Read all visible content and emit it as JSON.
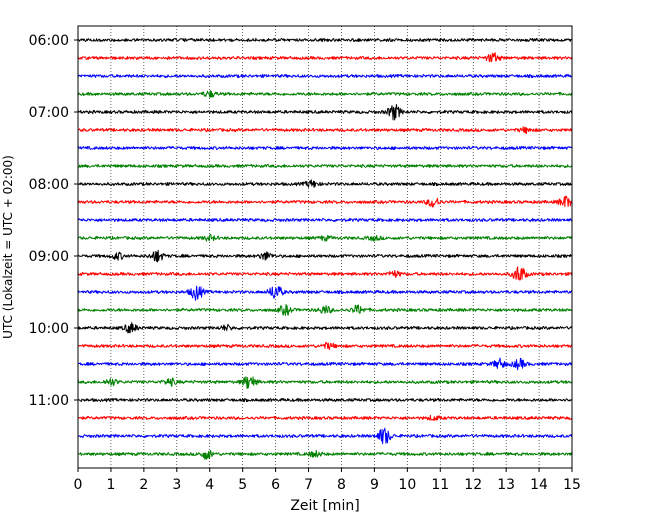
{
  "chart_data": {
    "type": "line",
    "title": "",
    "xlabel": "Zeit  [min]",
    "ylabel": "UTC (Lokalzeit = UTC + 02:00)",
    "xlim": [
      0,
      15
    ],
    "x_ticks": [
      "0",
      "1",
      "2",
      "3",
      "4",
      "5",
      "6",
      "7",
      "8",
      "9",
      "10",
      "11",
      "12",
      "13",
      "14",
      "15"
    ],
    "y_ticks": [
      "06:00",
      "07:00",
      "08:00",
      "09:00",
      "10:00",
      "11:00"
    ],
    "grid_x": true,
    "grid_style": "dotted",
    "color_cycle": [
      "#000000",
      "#ff0000",
      "#0000ff",
      "#008000"
    ],
    "series": [
      {
        "start": "06:00",
        "color": "#000000",
        "bursts": []
      },
      {
        "start": "06:15",
        "color": "#ff0000",
        "bursts": [
          {
            "t": 12.6,
            "a": 0.5
          }
        ]
      },
      {
        "start": "06:30",
        "color": "#0000ff",
        "bursts": []
      },
      {
        "start": "06:45",
        "color": "#008000",
        "bursts": [
          {
            "t": 4.0,
            "a": 0.3
          }
        ]
      },
      {
        "start": "07:00",
        "color": "#000000",
        "bursts": [
          {
            "t": 9.6,
            "a": 0.8
          }
        ]
      },
      {
        "start": "07:15",
        "color": "#ff0000",
        "bursts": [
          {
            "t": 13.6,
            "a": 0.25
          }
        ]
      },
      {
        "start": "07:30",
        "color": "#0000ff",
        "bursts": []
      },
      {
        "start": "07:45",
        "color": "#008000",
        "bursts": []
      },
      {
        "start": "08:00",
        "color": "#000000",
        "bursts": [
          {
            "t": 7.1,
            "a": 0.35
          }
        ]
      },
      {
        "start": "08:15",
        "color": "#ff0000",
        "bursts": [
          {
            "t": 10.8,
            "a": 0.55
          },
          {
            "t": 14.8,
            "a": 0.6
          }
        ]
      },
      {
        "start": "08:30",
        "color": "#0000ff",
        "bursts": []
      },
      {
        "start": "08:45",
        "color": "#008000",
        "bursts": [
          {
            "t": 4.0,
            "a": 0.25
          },
          {
            "t": 7.5,
            "a": 0.2
          },
          {
            "t": 9.0,
            "a": 0.2
          }
        ]
      },
      {
        "start": "09:00",
        "color": "#000000",
        "bursts": [
          {
            "t": 1.2,
            "a": 0.35
          },
          {
            "t": 2.4,
            "a": 0.6
          },
          {
            "t": 5.7,
            "a": 0.4
          }
        ]
      },
      {
        "start": "09:15",
        "color": "#ff0000",
        "bursts": [
          {
            "t": 9.6,
            "a": 0.3
          },
          {
            "t": 13.4,
            "a": 0.9
          }
        ]
      },
      {
        "start": "09:30",
        "color": "#0000ff",
        "bursts": [
          {
            "t": 3.6,
            "a": 0.8
          },
          {
            "t": 6.0,
            "a": 0.8
          }
        ]
      },
      {
        "start": "09:45",
        "color": "#008000",
        "bursts": [
          {
            "t": 6.3,
            "a": 0.5
          },
          {
            "t": 7.5,
            "a": 0.4
          },
          {
            "t": 8.5,
            "a": 0.45
          }
        ]
      },
      {
        "start": "10:00",
        "color": "#000000",
        "bursts": [
          {
            "t": 1.6,
            "a": 0.5
          },
          {
            "t": 4.5,
            "a": 0.25
          }
        ]
      },
      {
        "start": "10:15",
        "color": "#ff0000",
        "bursts": [
          {
            "t": 7.6,
            "a": 0.3
          }
        ]
      },
      {
        "start": "10:30",
        "color": "#0000ff",
        "bursts": [
          {
            "t": 12.8,
            "a": 0.5
          },
          {
            "t": 13.4,
            "a": 0.5
          }
        ]
      },
      {
        "start": "10:45",
        "color": "#008000",
        "bursts": [
          {
            "t": 1.0,
            "a": 0.35
          },
          {
            "t": 2.8,
            "a": 0.35
          },
          {
            "t": 5.2,
            "a": 0.75
          }
        ]
      },
      {
        "start": "11:00",
        "color": "#000000",
        "bursts": []
      },
      {
        "start": "11:15",
        "color": "#ff0000",
        "bursts": [
          {
            "t": 10.8,
            "a": 0.2
          }
        ]
      },
      {
        "start": "11:30",
        "color": "#0000ff",
        "bursts": [
          {
            "t": 9.3,
            "a": 0.9
          }
        ]
      },
      {
        "start": "11:45",
        "color": "#008000",
        "bursts": [
          {
            "t": 3.9,
            "a": 0.5
          },
          {
            "t": 7.2,
            "a": 0.3
          }
        ]
      }
    ]
  }
}
